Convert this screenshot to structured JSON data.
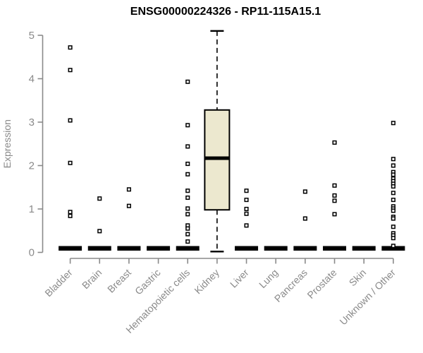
{
  "chart_data": {
    "type": "boxplot",
    "title": "ENSG00000224326 - RP11-115A15.1",
    "ylabel": "Expression",
    "ylim": [
      0,
      5.2
    ],
    "yticks": [
      0,
      1,
      2,
      3,
      4,
      5
    ],
    "grid": false,
    "legend": "none",
    "categories": [
      "Bladder",
      "Brain",
      "Breast",
      "Gastric",
      "Hematopoietic cells",
      "Kidney",
      "Liver",
      "Lung",
      "Pancreas",
      "Prostate",
      "Skin",
      "Unknown / Other"
    ],
    "series": [
      {
        "category": "Bladder",
        "collapsed_at_zero": true,
        "outliers": [
          4.72,
          4.2,
          3.04,
          2.06,
          0.93,
          0.84
        ]
      },
      {
        "category": "Brain",
        "collapsed_at_zero": true,
        "outliers": [
          1.24,
          0.49
        ]
      },
      {
        "category": "Breast",
        "collapsed_at_zero": true,
        "outliers": [
          1.45,
          1.07
        ]
      },
      {
        "category": "Gastric",
        "collapsed_at_zero": true,
        "outliers": []
      },
      {
        "category": "Hematopoietic cells",
        "collapsed_at_zero": true,
        "outliers": [
          3.93,
          2.93,
          2.44,
          2.04,
          1.8,
          1.42,
          1.26,
          1.01,
          0.88,
          0.62,
          0.55,
          0.42,
          0.25
        ]
      },
      {
        "category": "Kidney",
        "collapsed_at_zero": false,
        "box": {
          "whisker_high": 5.1,
          "q3": 3.28,
          "median": 2.17,
          "q1": 0.98,
          "whisker_low": 0.02
        },
        "outliers": []
      },
      {
        "category": "Liver",
        "collapsed_at_zero": true,
        "outliers": [
          1.42,
          1.21,
          1.0,
          0.89,
          0.62
        ]
      },
      {
        "category": "Lung",
        "collapsed_at_zero": true,
        "outliers": []
      },
      {
        "category": "Pancreas",
        "collapsed_at_zero": true,
        "outliers": [
          1.4,
          0.78
        ]
      },
      {
        "category": "Prostate",
        "collapsed_at_zero": true,
        "outliers": [
          2.53,
          1.54,
          1.31,
          1.19,
          0.88
        ]
      },
      {
        "category": "Skin",
        "collapsed_at_zero": true,
        "outliers": []
      },
      {
        "category": "Unknown / Other",
        "collapsed_at_zero": true,
        "outliers": [
          2.98,
          2.15,
          2.0,
          1.85,
          1.79,
          1.7,
          1.64,
          1.58,
          1.52,
          1.37,
          1.21,
          1.06,
          1.01,
          0.96,
          0.82,
          0.78,
          0.59,
          0.44,
          0.39,
          0.33,
          0.15
        ]
      }
    ],
    "colors": {
      "axis": "#8a8a8a",
      "tick_label": "#8a8a8a",
      "box_fill": "#ece8cf",
      "box_border": "#000000",
      "median": "#000000",
      "outlier_stroke": "#000000",
      "title": "#000000"
    }
  }
}
